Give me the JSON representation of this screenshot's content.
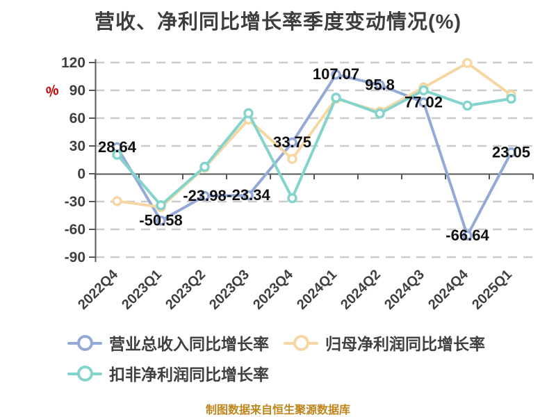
{
  "title": "营收、净利同比增长率季度变动情况(%)",
  "footer": "制图数据来自恒生聚源数据库",
  "y_axis": {
    "unit": "%",
    "unit_color": "#cc0000",
    "ticks": [
      120,
      90,
      60,
      30,
      0,
      -30,
      -60,
      -90
    ]
  },
  "colors": {
    "axis_line": "#54585a",
    "gridline": "#cbcbcb",
    "axis_text": "#3f3f3f",
    "data_label": "#111111",
    "title_text": "#3d3d3d",
    "footer_text": "#bf851b"
  },
  "chart_data": {
    "type": "line",
    "title": "营收、净利同比增长率季度变动情况(%)",
    "categories": [
      "2022Q4",
      "2023Q1",
      "2023Q2",
      "2023Q3",
      "2023Q4",
      "2024Q1",
      "2024Q2",
      "2024Q3",
      "2024Q4",
      "2025Q1"
    ],
    "series": [
      {
        "name": "营业总收入同比增长率",
        "color": "#93aad8",
        "values": [
          28.64,
          -50.58,
          -23.98,
          -23.34,
          33.75,
          107.07,
          95.8,
          77.02,
          -66.64,
          23.05
        ],
        "labels": [
          "28.64",
          "-50.58",
          "-23.98",
          "-23.34",
          "33.75",
          "107.07",
          "95.8",
          "77.02",
          "-66.64",
          "23.05"
        ]
      },
      {
        "name": "归母净利润同比增长率",
        "color": "#f6d7a3",
        "values": [
          -29.5,
          -36,
          6.5,
          58.5,
          16,
          81,
          67,
          93,
          119.5,
          85
        ],
        "labels": []
      },
      {
        "name": "扣非净利润同比增长率",
        "color": "#83d4cc",
        "values": [
          20.5,
          -34,
          7.5,
          65.3,
          -26.3,
          82,
          65,
          90,
          73.5,
          81
        ],
        "labels": []
      }
    ],
    "ylim": [
      -90,
      120
    ],
    "grid": true,
    "grid_style": "dashed",
    "legend_position": "bottom"
  }
}
